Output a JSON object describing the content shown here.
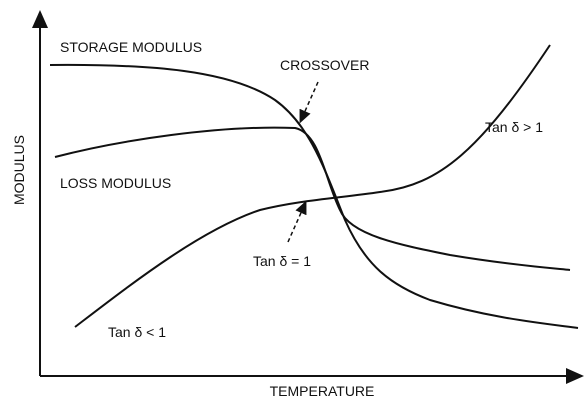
{
  "axes": {
    "x_label": "TEMPERATURE",
    "y_label": "MODULUS"
  },
  "curve_labels": {
    "storage": "STORAGE MODULUS",
    "loss": "LOSS MODULUS",
    "crossover": "CROSSOVER",
    "tan_gt": "Tan δ > 1",
    "tan_eq": "Tan δ = 1",
    "tan_lt": "Tan δ < 1"
  }
}
